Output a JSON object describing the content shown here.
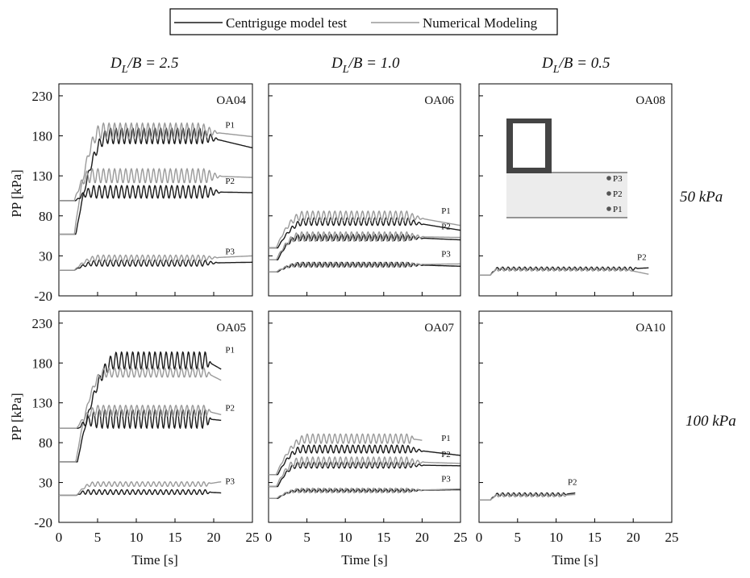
{
  "legend": {
    "items": [
      {
        "label": "Centriguge model test",
        "color": "#1a1a1a"
      },
      {
        "label": "Numerical Modeling",
        "color": "#9a9a9a"
      }
    ]
  },
  "columns": [
    {
      "main": "D",
      "sub": "L",
      "rest": "/B = 2.5"
    },
    {
      "main": "D",
      "sub": "L",
      "rest": "/B = 1.0"
    },
    {
      "main": "D",
      "sub": "L",
      "rest": "/B = 0.5"
    }
  ],
  "rows": [
    {
      "label": "50 kPa"
    },
    {
      "label": "100 kPa"
    }
  ],
  "axes": {
    "ylabel": "PP  [kPa]",
    "xlabel": "Time [s]",
    "yticks": [
      "230",
      "180",
      "130",
      "80",
      "30",
      "-20"
    ],
    "xticks": [
      "0",
      "5",
      "10",
      "15",
      "20",
      "25"
    ],
    "ylim": [
      -20,
      245
    ],
    "xlim": [
      0,
      25
    ]
  },
  "inset": {
    "labels": [
      "P3",
      "P2",
      "P1"
    ]
  },
  "chart_data": [
    {
      "type": "line",
      "id": "OA04",
      "series": [
        {
          "source": "test",
          "label": "P1",
          "base": 57,
          "rise_start": 2.2,
          "rise_end": 6.5,
          "plateau": 180,
          "amp": 10,
          "cyc_end": 18.5,
          "end_t": 25,
          "end_v": 165,
          "label_t": 21.5
        },
        {
          "source": "num",
          "label": "",
          "base": 57,
          "rise_start": 2.0,
          "rise_end": 5.5,
          "plateau": 186,
          "amp": 10,
          "cyc_end": 18.5,
          "end_t": 25,
          "end_v": 179,
          "label_t": 0
        },
        {
          "source": "test",
          "label": "P2",
          "base": 99,
          "rise_start": 2.2,
          "rise_end": 4.5,
          "plateau": 110,
          "amp": 8,
          "cyc_end": 19.0,
          "end_t": 25,
          "end_v": 109,
          "label_t": 21.5
        },
        {
          "source": "num",
          "label": "",
          "base": 99,
          "rise_start": 2.0,
          "rise_end": 4.0,
          "plateau": 130,
          "amp": 9,
          "cyc_end": 19.0,
          "end_t": 25,
          "end_v": 128,
          "label_t": 0
        },
        {
          "source": "test",
          "label": "P3",
          "base": 12,
          "rise_start": 2.0,
          "rise_end": 5.0,
          "plateau": 21,
          "amp": 4,
          "cyc_end": 18.5,
          "end_t": 25,
          "end_v": 22,
          "label_t": 21.5
        },
        {
          "source": "num",
          "label": "",
          "base": 12,
          "rise_start": 2.0,
          "rise_end": 5.0,
          "plateau": 27,
          "amp": 4,
          "cyc_end": 18.5,
          "end_t": 25,
          "end_v": 30,
          "label_t": 0
        }
      ]
    },
    {
      "type": "line",
      "id": "OA06",
      "series": [
        {
          "source": "test",
          "label": "P1",
          "base": 40,
          "rise_start": 1.2,
          "rise_end": 5.0,
          "plateau": 73,
          "amp": 5,
          "cyc_end": 18.0,
          "end_t": 25,
          "end_v": 62,
          "label_t": 22.5
        },
        {
          "source": "num",
          "label": "",
          "base": 40,
          "rise_start": 1.0,
          "rise_end": 4.5,
          "plateau": 80,
          "amp": 6,
          "cyc_end": 18.0,
          "end_t": 25,
          "end_v": 68,
          "label_t": 0
        },
        {
          "source": "test",
          "label": "P2",
          "base": 25,
          "rise_start": 1.2,
          "rise_end": 4.0,
          "plateau": 53,
          "amp": 4,
          "cyc_end": 18.0,
          "end_t": 25,
          "end_v": 50,
          "label_t": 22.5
        },
        {
          "source": "num",
          "label": "",
          "base": 25,
          "rise_start": 1.0,
          "rise_end": 4.0,
          "plateau": 54,
          "amp": 6,
          "cyc_end": 18.0,
          "end_t": 25,
          "end_v": 53,
          "label_t": 0
        },
        {
          "source": "test",
          "label": "P3",
          "base": 10,
          "rise_start": 1.2,
          "rise_end": 4.0,
          "plateau": 19,
          "amp": 3,
          "cyc_end": 18.0,
          "end_t": 25,
          "end_v": 17,
          "label_t": 22.5
        },
        {
          "source": "num",
          "label": "",
          "base": 10,
          "rise_start": 1.0,
          "rise_end": 4.0,
          "plateau": 19,
          "amp": 3,
          "cyc_end": 18.0,
          "end_t": 25,
          "end_v": 20,
          "label_t": 0
        }
      ]
    },
    {
      "type": "line",
      "id": "OA08",
      "series": [
        {
          "source": "test",
          "label": "P2",
          "base": 6,
          "rise_start": 1.5,
          "rise_end": 2.5,
          "plateau": 14,
          "amp": 2,
          "cyc_end": 20.0,
          "end_t": 22,
          "end_v": 15,
          "label_t": 20.5
        },
        {
          "source": "num",
          "label": "",
          "base": 6,
          "rise_start": 1.5,
          "rise_end": 2.5,
          "plateau": 13,
          "amp": 2,
          "cyc_end": 19.0,
          "end_t": 22,
          "end_v": 7,
          "label_t": 0
        }
      ]
    },
    {
      "type": "line",
      "id": "OA05",
      "series": [
        {
          "source": "test",
          "label": "P1",
          "base": 56,
          "rise_start": 2.4,
          "rise_end": 7.5,
          "plateau": 183,
          "amp": 11,
          "cyc_end": 19.0,
          "end_t": 21,
          "end_v": 172,
          "label_t": 21.5
        },
        {
          "source": "num",
          "label": "",
          "base": 56,
          "rise_start": 2.2,
          "rise_end": 6.0,
          "plateau": 168,
          "amp": 6,
          "cyc_end": 19.0,
          "end_t": 21,
          "end_v": 158,
          "label_t": 0
        },
        {
          "source": "test",
          "label": "P2",
          "base": 98,
          "rise_start": 2.5,
          "rise_end": 5.0,
          "plateau": 110,
          "amp": 12,
          "cyc_end": 19.0,
          "end_t": 21,
          "end_v": 108,
          "label_t": 21.5
        },
        {
          "source": "num",
          "label": "",
          "base": 98,
          "rise_start": 2.3,
          "rise_end": 5.0,
          "plateau": 120,
          "amp": 7,
          "cyc_end": 19.0,
          "end_t": 21,
          "end_v": 115,
          "label_t": 0
        },
        {
          "source": "test",
          "label": "P3",
          "base": 14,
          "rise_start": 2.3,
          "rise_end": 3.5,
          "plateau": 18,
          "amp": 3,
          "cyc_end": 19.0,
          "end_t": 21,
          "end_v": 17,
          "label_t": 21.5
        },
        {
          "source": "num",
          "label": "",
          "base": 14,
          "rise_start": 2.3,
          "rise_end": 4.5,
          "plateau": 28,
          "amp": 3,
          "cyc_end": 19.0,
          "end_t": 21,
          "end_v": 31,
          "label_t": 0
        }
      ]
    },
    {
      "type": "line",
      "id": "OA07",
      "series": [
        {
          "source": "test",
          "label": "P1",
          "base": 40,
          "rise_start": 1.2,
          "rise_end": 4.5,
          "plateau": 72,
          "amp": 5,
          "cyc_end": 18.0,
          "end_t": 25,
          "end_v": 64,
          "label_t": 22.5
        },
        {
          "source": "num",
          "label": "",
          "base": 40,
          "rise_start": 1.0,
          "rise_end": 5.0,
          "plateau": 85,
          "amp": 6,
          "cyc_end": 18.5,
          "end_t": 20,
          "end_v": 83,
          "label_t": 0
        },
        {
          "source": "test",
          "label": "P2",
          "base": 25,
          "rise_start": 1.2,
          "rise_end": 4.0,
          "plateau": 52,
          "amp": 4,
          "cyc_end": 18.0,
          "end_t": 25,
          "end_v": 51,
          "label_t": 22.5
        },
        {
          "source": "num",
          "label": "",
          "base": 25,
          "rise_start": 1.0,
          "rise_end": 4.0,
          "plateau": 56,
          "amp": 6,
          "cyc_end": 18.0,
          "end_t": 25,
          "end_v": 54,
          "label_t": 0
        },
        {
          "source": "test",
          "label": "P3",
          "base": 10,
          "rise_start": 1.2,
          "rise_end": 4.0,
          "plateau": 20,
          "amp": 2,
          "cyc_end": 18.0,
          "end_t": 25,
          "end_v": 21,
          "label_t": 22.5
        },
        {
          "source": "num",
          "label": "",
          "base": 10,
          "rise_start": 1.0,
          "rise_end": 4.0,
          "plateau": 20,
          "amp": 3,
          "cyc_end": 18.0,
          "end_t": 25,
          "end_v": 22,
          "label_t": 0
        }
      ]
    },
    {
      "type": "line",
      "id": "OA10",
      "series": [
        {
          "source": "test",
          "label": "P2",
          "base": 8,
          "rise_start": 1.5,
          "rise_end": 2.5,
          "plateau": 15,
          "amp": 2,
          "cyc_end": 11.0,
          "end_t": 12.5,
          "end_v": 17,
          "label_t": 11.5
        },
        {
          "source": "num",
          "label": "",
          "base": 8,
          "rise_start": 1.5,
          "rise_end": 2.5,
          "plateau": 14,
          "amp": 2,
          "cyc_end": 11.0,
          "end_t": 12.5,
          "end_v": 15,
          "label_t": 0
        }
      ]
    }
  ]
}
